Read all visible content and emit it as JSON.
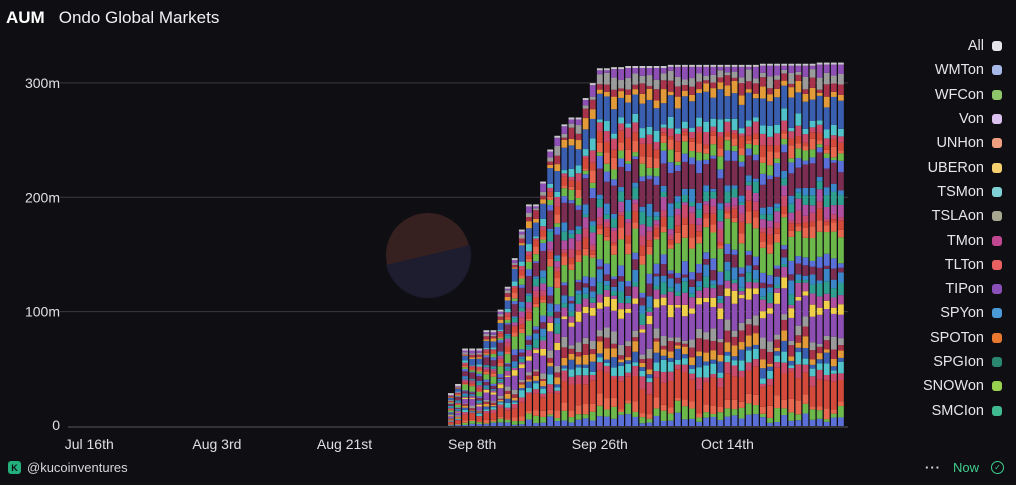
{
  "header": {
    "metric": "AUM",
    "title": "Ondo Global Markets"
  },
  "chart_data": {
    "type": "bar",
    "stacked": true,
    "title": "Ondo Global Markets",
    "ylabel": "AUM",
    "xlabel": "",
    "ylim": [
      0,
      320
    ],
    "y_ticks": [
      {
        "value": 0,
        "label": "0"
      },
      {
        "value": 100,
        "label": "100m"
      },
      {
        "value": 200,
        "label": "200m"
      },
      {
        "value": 300,
        "label": "300m"
      }
    ],
    "x_ticks": [
      {
        "day": 0,
        "label": "Jul 16th"
      },
      {
        "day": 18,
        "label": "Aug 3rd"
      },
      {
        "day": 36,
        "label": "Aug 21st"
      },
      {
        "day": 54,
        "label": "Sep 8th"
      },
      {
        "day": 72,
        "label": "Sep 26th"
      },
      {
        "day": 90,
        "label": "Oct 14th"
      }
    ],
    "x_range": [
      -3,
      107
    ],
    "start_day": 51,
    "total_aum_millions": [
      27,
      35,
      66,
      66,
      66,
      82,
      82,
      100,
      120,
      145,
      170,
      192,
      192,
      212,
      240,
      252,
      262,
      268,
      268,
      285,
      298,
      311,
      311,
      312,
      312,
      313,
      313,
      313,
      313,
      313,
      313,
      314,
      314,
      314,
      314,
      314,
      314,
      314,
      314,
      314,
      314,
      314,
      314,
      314,
      315,
      315,
      315,
      315,
      315,
      315,
      315,
      315,
      316,
      316,
      316,
      316
    ],
    "series_palette": [
      "#5a6fd8",
      "#2e9e8f",
      "#8e4fb5",
      "#e39b3a",
      "#c94a6a",
      "#6db84a",
      "#3b86c8",
      "#f0d04a",
      "#a8324a",
      "#4fc3c9",
      "#e8684f",
      "#7b2d52",
      "#b04fa0",
      "#9b9b9b",
      "#3a5fb0",
      "#d44a3a"
    ],
    "legend": [
      {
        "label": "All",
        "color": "#e6e6ea"
      },
      {
        "label": "WMTon",
        "color": "#a8b8e8"
      },
      {
        "label": "WFCon",
        "color": "#8fc86a"
      },
      {
        "label": "Von",
        "color": "#dcc0f0"
      },
      {
        "label": "UNHon",
        "color": "#f0a080"
      },
      {
        "label": "UBERon",
        "color": "#f4d070"
      },
      {
        "label": "TSMon",
        "color": "#80d0d8"
      },
      {
        "label": "TSLAon",
        "color": "#a8a890"
      },
      {
        "label": "TMon",
        "color": "#c04890"
      },
      {
        "label": "TLTon",
        "color": "#e86060"
      },
      {
        "label": "TIPon",
        "color": "#8a50b8"
      },
      {
        "label": "SPYon",
        "color": "#4a9ad8"
      },
      {
        "label": "SPOTon",
        "color": "#e87830"
      },
      {
        "label": "SPGIon",
        "color": "#2a8870"
      },
      {
        "label": "SNOWon",
        "color": "#98d050"
      },
      {
        "label": "SMCIon",
        "color": "#40b890"
      }
    ]
  },
  "footer": {
    "handle": "@kucoinventures",
    "status": "Now"
  }
}
